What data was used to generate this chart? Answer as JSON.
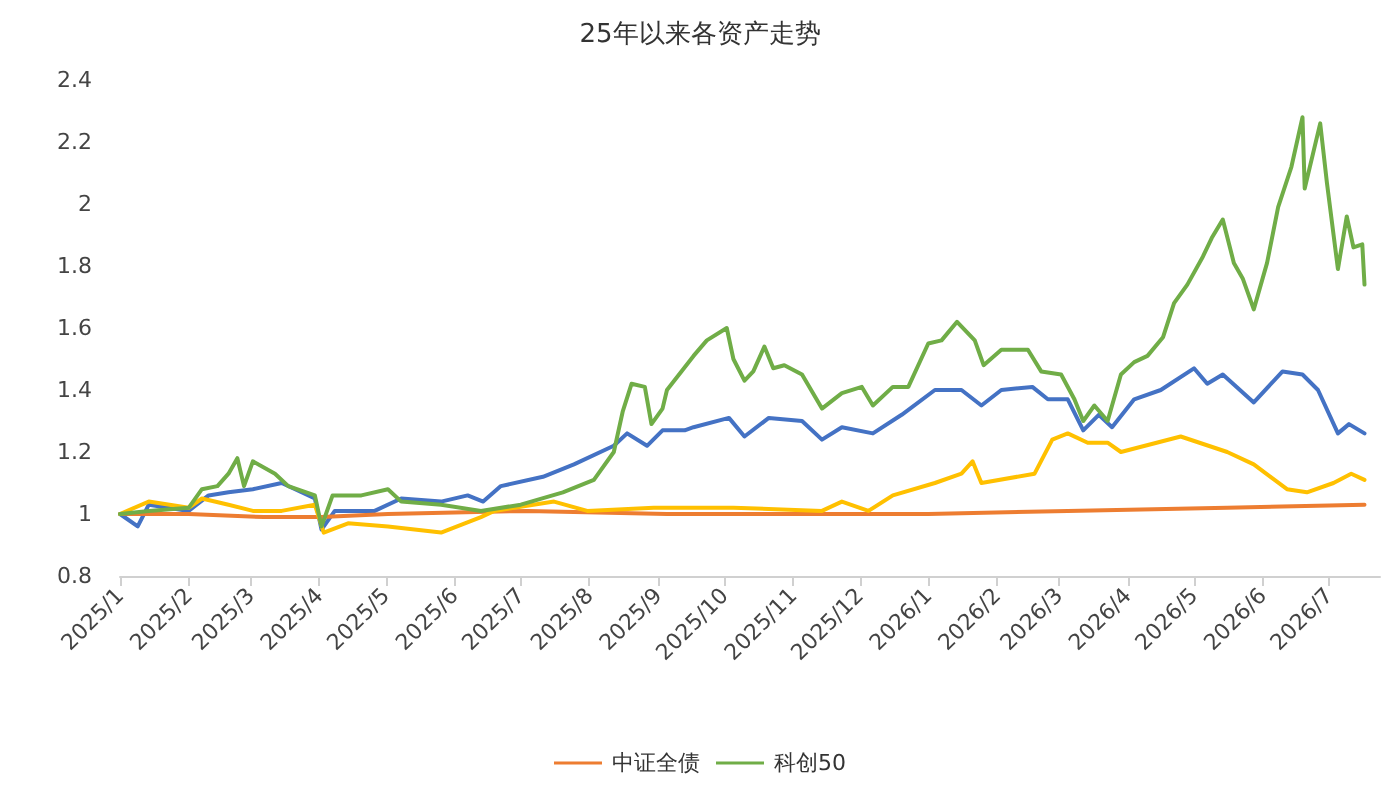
{
  "chart_data": {
    "type": "line",
    "title": "25年以来各资产走势",
    "grid": false,
    "legend": "bottom",
    "marker": "none",
    "line_style": "solid",
    "xlim": [
      "2025-01-01",
      "2026-07-24"
    ],
    "xticks": [
      {
        "value": "2025-01",
        "label": "2025/1"
      },
      {
        "value": "2025-02",
        "label": "2025/2"
      },
      {
        "value": "2025-03",
        "label": "2025/3"
      },
      {
        "value": "2025-04",
        "label": "2025/4"
      },
      {
        "value": "2025-05",
        "label": "2025/5"
      },
      {
        "value": "2025-06",
        "label": "2025/6"
      },
      {
        "value": "2025-07",
        "label": "2025/7"
      },
      {
        "value": "2025-08",
        "label": "2025/8"
      },
      {
        "value": "2025-09",
        "label": "2025/9"
      },
      {
        "value": "2025-10",
        "label": "2025/10"
      },
      {
        "value": "2025-11",
        "label": "2025/11"
      },
      {
        "value": "2025-12",
        "label": "2025/12"
      },
      {
        "value": "2026-01",
        "label": "2026/1"
      },
      {
        "value": "2026-02",
        "label": "2026/2"
      },
      {
        "value": "2026-03",
        "label": "2026/3"
      },
      {
        "value": "2026-04",
        "label": "2026/4"
      },
      {
        "value": "2026-05",
        "label": "2026/5"
      },
      {
        "value": "2026-06",
        "label": "2026/6"
      },
      {
        "value": "2026-07",
        "label": "2026/7"
      }
    ],
    "ylim": [
      0.8,
      2.4
    ],
    "yticks": [
      0.8,
      1,
      1.2,
      1.4,
      1.6,
      1.8,
      2,
      2.2,
      2.4
    ],
    "series": [
      {
        "color": "#4472c4",
        "x": [
          "2025-01-01",
          "2025-01-09",
          "2025-01-14",
          "2025-02-01",
          "2025-02-10",
          "2025-02-19",
          "2025-03-02",
          "2025-03-15",
          "2025-03-24",
          "2025-03-30",
          "2025-04-02",
          "2025-04-08",
          "2025-04-26",
          "2025-05-08",
          "2025-05-26",
          "2025-06-07",
          "2025-06-14",
          "2025-06-22",
          "2025-07-11",
          "2025-07-25",
          "2025-08-12",
          "2025-08-18",
          "2025-08-27",
          "2025-09-03",
          "2025-09-13",
          "2025-09-17",
          "2025-10-03",
          "2025-10-10",
          "2025-10-21",
          "2025-11-05",
          "2025-11-14",
          "2025-11-23",
          "2025-12-07",
          "2025-12-20",
          "2026-01-04",
          "2026-01-16",
          "2026-01-25",
          "2026-02-03",
          "2026-02-17",
          "2026-02-24",
          "2026-03-05",
          "2026-03-12",
          "2026-03-19",
          "2026-03-25",
          "2026-04-04",
          "2026-04-16",
          "2026-05-01",
          "2026-05-07",
          "2026-05-14",
          "2026-05-28",
          "2026-06-10",
          "2026-06-19",
          "2026-06-26",
          "2026-07-05",
          "2026-07-10",
          "2026-07-17"
        ],
        "values": [
          1.0,
          0.96,
          1.03,
          1.01,
          1.06,
          1.07,
          1.08,
          1.1,
          1.07,
          1.05,
          0.95,
          1.01,
          1.01,
          1.05,
          1.04,
          1.06,
          1.04,
          1.09,
          1.12,
          1.16,
          1.22,
          1.26,
          1.22,
          1.27,
          1.27,
          1.28,
          1.31,
          1.25,
          1.31,
          1.3,
          1.24,
          1.28,
          1.26,
          1.32,
          1.4,
          1.4,
          1.35,
          1.4,
          1.41,
          1.37,
          1.37,
          1.27,
          1.32,
          1.28,
          1.37,
          1.4,
          1.47,
          1.42,
          1.45,
          1.36,
          1.46,
          1.45,
          1.4,
          1.26,
          1.29,
          1.26
        ]
      },
      {
        "name": "中证全债",
        "color": "#ed7d31",
        "x": [
          "2025-01-01",
          "2025-02-01",
          "2025-03-07",
          "2025-04-02",
          "2025-05-02",
          "2025-07-04",
          "2025-09-05",
          "2025-11-17",
          "2026-01-01",
          "2026-03-05",
          "2026-05-16",
          "2026-07-17"
        ],
        "values": [
          1.0,
          1.0,
          0.99,
          0.99,
          1.0,
          1.01,
          1.0,
          1.0,
          1.0,
          1.01,
          1.02,
          1.03
        ]
      },
      {
        "color": "#ffc000",
        "x": [
          "2025-01-01",
          "2025-01-14",
          "2025-02-01",
          "2025-02-07",
          "2025-02-19",
          "2025-03-02",
          "2025-03-15",
          "2025-03-30",
          "2025-04-03",
          "2025-04-14",
          "2025-05-02",
          "2025-05-26",
          "2025-06-13",
          "2025-06-19",
          "2025-07-16",
          "2025-07-31",
          "2025-08-30",
          "2025-09-13",
          "2025-10-05",
          "2025-11-14",
          "2025-11-23",
          "2025-12-05",
          "2025-12-16",
          "2026-01-04",
          "2026-01-16",
          "2026-01-21",
          "2026-01-25",
          "2026-02-18",
          "2026-02-26",
          "2026-03-05",
          "2026-03-14",
          "2026-03-23",
          "2026-03-29",
          "2026-04-25",
          "2026-05-16",
          "2026-05-28",
          "2026-06-12",
          "2026-06-21",
          "2026-07-03",
          "2026-07-11",
          "2026-07-17"
        ],
        "values": [
          1.0,
          1.04,
          1.02,
          1.05,
          1.03,
          1.01,
          1.01,
          1.03,
          0.94,
          0.97,
          0.96,
          0.94,
          0.99,
          1.01,
          1.04,
          1.01,
          1.02,
          1.02,
          1.02,
          1.01,
          1.04,
          1.01,
          1.06,
          1.1,
          1.13,
          1.17,
          1.1,
          1.13,
          1.24,
          1.26,
          1.23,
          1.23,
          1.2,
          1.25,
          1.2,
          1.16,
          1.08,
          1.07,
          1.1,
          1.13,
          1.11
        ]
      },
      {
        "name": "科创50",
        "color": "#70ad47",
        "x": [
          "2025-01-01",
          "2025-01-14",
          "2025-02-01",
          "2025-02-07",
          "2025-02-14",
          "2025-02-19",
          "2025-02-23",
          "2025-02-26",
          "2025-03-02",
          "2025-03-12",
          "2025-03-18",
          "2025-03-30",
          "2025-04-02",
          "2025-04-07",
          "2025-04-20",
          "2025-05-02",
          "2025-05-08",
          "2025-05-26",
          "2025-06-13",
          "2025-07-01",
          "2025-07-20",
          "2025-08-03",
          "2025-08-12",
          "2025-08-16",
          "2025-08-20",
          "2025-08-26",
          "2025-08-29",
          "2025-09-03",
          "2025-09-05",
          "2025-09-17",
          "2025-09-23",
          "2025-10-02",
          "2025-10-05",
          "2025-10-10",
          "2025-10-14",
          "2025-10-19",
          "2025-10-23",
          "2025-10-28",
          "2025-11-05",
          "2025-11-14",
          "2025-11-23",
          "2025-12-02",
          "2025-12-07",
          "2025-12-16",
          "2025-12-23",
          "2026-01-01",
          "2026-01-07",
          "2026-01-14",
          "2026-01-22",
          "2026-01-26",
          "2026-02-03",
          "2026-02-15",
          "2026-02-21",
          "2026-03-02",
          "2026-03-08",
          "2026-03-12",
          "2026-03-17",
          "2026-03-23",
          "2026-03-29",
          "2026-04-04",
          "2026-04-10",
          "2026-04-17",
          "2026-04-22",
          "2026-04-28",
          "2026-05-05",
          "2026-05-09",
          "2026-05-14",
          "2026-05-19",
          "2026-05-23",
          "2026-05-28",
          "2026-06-03",
          "2026-06-08",
          "2026-06-14",
          "2026-06-19",
          "2026-06-20",
          "2026-06-27",
          "2026-06-30",
          "2026-07-05",
          "2026-07-09",
          "2026-07-12",
          "2026-07-16",
          "2026-07-17"
        ],
        "values": [
          1.0,
          1.01,
          1.02,
          1.08,
          1.09,
          1.13,
          1.18,
          1.09,
          1.17,
          1.13,
          1.09,
          1.06,
          0.96,
          1.06,
          1.06,
          1.08,
          1.04,
          1.03,
          1.01,
          1.03,
          1.07,
          1.11,
          1.2,
          1.33,
          1.42,
          1.41,
          1.29,
          1.34,
          1.4,
          1.51,
          1.56,
          1.6,
          1.5,
          1.43,
          1.46,
          1.54,
          1.47,
          1.48,
          1.45,
          1.34,
          1.39,
          1.41,
          1.35,
          1.41,
          1.41,
          1.55,
          1.56,
          1.62,
          1.56,
          1.48,
          1.53,
          1.53,
          1.46,
          1.45,
          1.37,
          1.3,
          1.35,
          1.3,
          1.45,
          1.49,
          1.51,
          1.57,
          1.68,
          1.74,
          1.83,
          1.89,
          1.95,
          1.81,
          1.76,
          1.66,
          1.81,
          1.99,
          2.12,
          2.28,
          2.05,
          2.26,
          2.07,
          1.79,
          1.96,
          1.86,
          1.87,
          1.74
        ]
      }
    ]
  }
}
